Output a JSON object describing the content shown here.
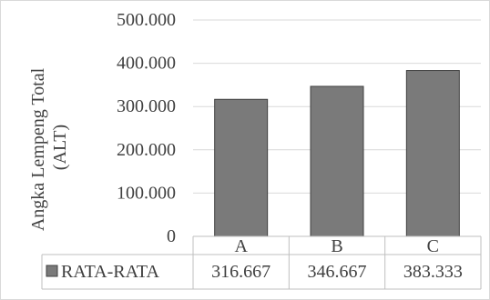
{
  "chart_data": {
    "type": "bar",
    "categories": [
      "A",
      "B",
      "C"
    ],
    "series": [
      {
        "name": "RATA-RATA",
        "values": [
          316667,
          346667,
          383333
        ]
      }
    ],
    "value_labels": [
      "316.667",
      "346.667",
      "383.333"
    ],
    "ylabel_lines": [
      "Angka Lempeng Total",
      "(ALT)"
    ],
    "ylim": [
      0,
      500000
    ],
    "yticks": [
      0,
      100000,
      200000,
      300000,
      400000,
      500000
    ],
    "ytick_labels": [
      "0",
      "100.000",
      "200.000",
      "300.000",
      "400.000",
      "500.000"
    ],
    "grid": true,
    "legend": "data-table-bottom",
    "colors": {
      "bar_fill": "#7a7a7a",
      "bar_stroke": "#404040",
      "grid": "#d9d9d9",
      "table_border": "#bfbfbf"
    }
  }
}
